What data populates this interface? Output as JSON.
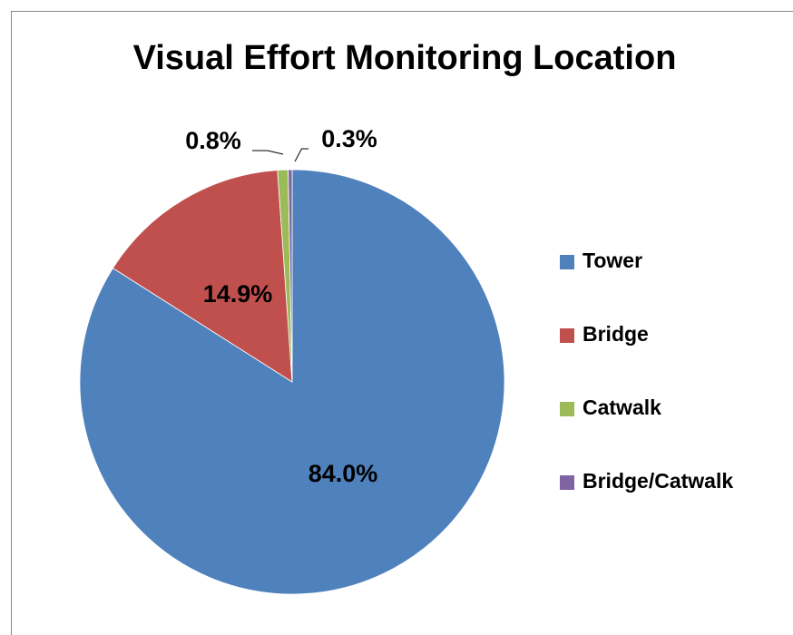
{
  "chart_data": {
    "type": "pie",
    "title": "Visual Effort Monitoring Location",
    "categories": [
      "Tower",
      "Bridge",
      "Catwalk",
      "Bridge/Catwalk"
    ],
    "values": [
      84.0,
      14.9,
      0.8,
      0.3
    ],
    "value_labels": [
      "84.0%",
      "14.9%",
      "0.8%",
      "0.3%"
    ],
    "colors": [
      "#4f81bd",
      "#c0504d",
      "#9bbb59",
      "#8064a2"
    ],
    "legend": "right"
  }
}
